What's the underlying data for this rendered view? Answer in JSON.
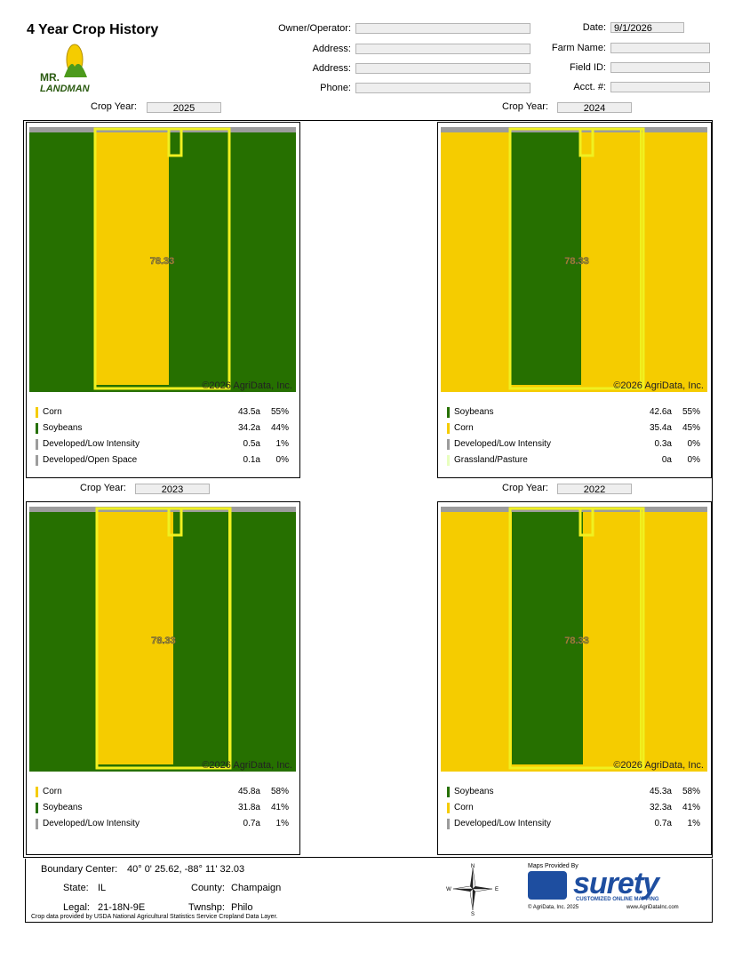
{
  "header": {
    "title": "4 Year Crop History",
    "logo": {
      "line1": "MR.",
      "line2": "LANDMAN"
    },
    "left_fields": [
      {
        "label": "Owner/Operator:"
      },
      {
        "label": "Address:"
      },
      {
        "label": "Address:"
      },
      {
        "label": "Phone:"
      }
    ],
    "right_fields": [
      {
        "label": "Date:",
        "value": "9/1/2026"
      },
      {
        "label": "Farm Name:"
      },
      {
        "label": "Field ID:"
      },
      {
        "label": "Acct. #:"
      }
    ]
  },
  "panels": [
    {
      "crop_year_label": "Crop Year:",
      "year": "2025",
      "map_label": "78.33",
      "copyright": "©2026 AgriData, Inc.",
      "legend": [
        {
          "name": "Corn",
          "color": "#f5cc00",
          "acres": "43.5a",
          "percent": "55%"
        },
        {
          "name": "Soybeans",
          "color": "#267000",
          "acres": "34.2a",
          "percent": "44%"
        },
        {
          "name": "Developed/Low Intensity",
          "color": "#9c9c9c",
          "acres": "0.5a",
          "percent": "1%"
        },
        {
          "name": "Developed/Open Space",
          "color": "#9c9c9c",
          "acres": "0.1a",
          "percent": "0%"
        }
      ]
    },
    {
      "crop_year_label": "Crop Year:",
      "year": "2024",
      "map_label": "78.33",
      "copyright": "©2026 AgriData, Inc.",
      "legend": [
        {
          "name": "Soybeans",
          "color": "#267000",
          "acres": "42.6a",
          "percent": "55%"
        },
        {
          "name": "Corn",
          "color": "#f5cc00",
          "acres": "35.4a",
          "percent": "45%"
        },
        {
          "name": "Developed/Low Intensity",
          "color": "#9c9c9c",
          "acres": "0.3a",
          "percent": "0%"
        },
        {
          "name": "Grassland/Pasture",
          "color": "#e8ffbf",
          "acres": "0a",
          "percent": "0%"
        }
      ]
    },
    {
      "crop_year_label": "Crop Year:",
      "year": "2023",
      "map_label": "78.33",
      "copyright": "©2026 AgriData, Inc.",
      "legend": [
        {
          "name": "Corn",
          "color": "#f5cc00",
          "acres": "45.8a",
          "percent": "58%"
        },
        {
          "name": "Soybeans",
          "color": "#267000",
          "acres": "31.8a",
          "percent": "41%"
        },
        {
          "name": "Developed/Low Intensity",
          "color": "#9c9c9c",
          "acres": "0.7a",
          "percent": "1%"
        }
      ]
    },
    {
      "crop_year_label": "Crop Year:",
      "year": "2022",
      "map_label": "78.33",
      "copyright": "©2026 AgriData, Inc.",
      "legend": [
        {
          "name": "Soybeans",
          "color": "#267000",
          "acres": "45.3a",
          "percent": "58%"
        },
        {
          "name": "Corn",
          "color": "#f5cc00",
          "acres": "32.3a",
          "percent": "41%"
        },
        {
          "name": "Developed/Low Intensity",
          "color": "#9c9c9c",
          "acres": "0.7a",
          "percent": "1%"
        }
      ]
    }
  ],
  "footer": {
    "boundary_label": "Boundary Center:",
    "boundary_value": "40° 0' 25.62,  -88° 11' 32.03",
    "state_label": "State:",
    "state_value": "IL",
    "county_label": "County:",
    "county_value": "Champaign",
    "legal_label": "Legal:",
    "legal_value": "21-18N-9E",
    "township_label": "Twnshp:",
    "township_value": "Philo",
    "note": "Crop data provided by USDA National Agricultural Statistics Service Cropland Data Layer.",
    "compass": {
      "n": "N",
      "s": "S",
      "e": "E",
      "w": "W"
    },
    "maps_by": "Maps Provided By",
    "brand": "surety",
    "tagline": "CUSTOMIZED ONLINE MAPPING",
    "brand_copyright": "© AgriData, Inc. 2025",
    "website": "www.AgriDataInc.com"
  }
}
